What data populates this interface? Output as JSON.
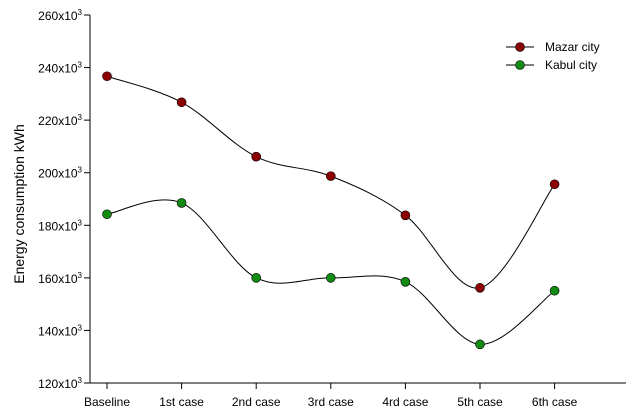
{
  "chart_data": {
    "type": "line",
    "title": "",
    "xlabel": "",
    "ylabel": "Energy consumption kWh",
    "categories": [
      "Baseline",
      "1st case",
      "2nd case",
      "3rd case",
      "4rd case",
      "5th case",
      "6th case"
    ],
    "ylim": [
      120000,
      260000
    ],
    "y_ticks": [
      120000,
      140000,
      160000,
      180000,
      200000,
      220000,
      240000,
      260000
    ],
    "y_tick_labels": [
      {
        "base": "120x10",
        "exp": "3"
      },
      {
        "base": "140x10",
        "exp": "3"
      },
      {
        "base": "160x10",
        "exp": "3"
      },
      {
        "base": "180x10",
        "exp": "3"
      },
      {
        "base": "200x10",
        "exp": "3"
      },
      {
        "base": "220x10",
        "exp": "3"
      },
      {
        "base": "240x10",
        "exp": "3"
      },
      {
        "base": "260x10",
        "exp": "3"
      }
    ],
    "grid": false,
    "legend_position": "top-right",
    "curve": "smooth spline",
    "series": [
      {
        "name": "Mazar city",
        "color": "#8b0000",
        "values": [
          236700,
          226800,
          206100,
          198700,
          183800,
          156200,
          195600
        ]
      },
      {
        "name": "Kabul city",
        "color": "#118b11",
        "values": [
          184200,
          188500,
          160000,
          160000,
          158500,
          134700,
          155100
        ]
      }
    ],
    "line_color": "#000000"
  }
}
